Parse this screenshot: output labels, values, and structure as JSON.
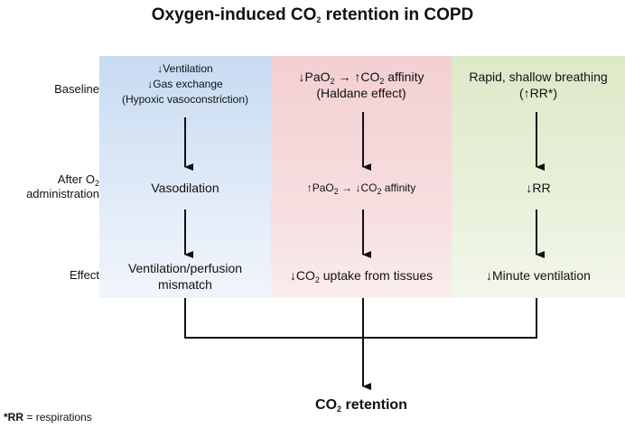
{
  "title": {
    "text": "Oxygen-induced CO",
    "sub": "2",
    "rest": " retention in COPD"
  },
  "row_labels": {
    "baseline": "Baseline",
    "after_line1": "After O",
    "after_sub": "2",
    "after_line2": "administration",
    "effect": "Effect"
  },
  "col1": {
    "baseline": {
      "l1": "Ventilation",
      "l2": "Gas exchange",
      "l3": "(Hypoxic vasoconstriction)"
    },
    "after": "Vasodilation",
    "effect": {
      "l1": "Ventilation/perfusion",
      "l2": "mismatch"
    }
  },
  "col2": {
    "baseline": {
      "a": "PaO",
      "a_sub": "2",
      "b": "CO",
      "b_sub": "2",
      "b_rest": " affinity",
      "l2": "(Haldane effect)"
    },
    "after": {
      "a": "PaO",
      "a_sub": "2",
      "b": "CO",
      "b_sub": "2",
      "b_rest": " affinity"
    },
    "effect": {
      "a": "CO",
      "a_sub": "2",
      "rest": "  uptake from tissues"
    }
  },
  "col3": {
    "baseline": {
      "l1": "Rapid, shallow breathing",
      "l2_pre": "(",
      "l2": "RR*)"
    },
    "after": "RR",
    "effect": "Minute ventilation"
  },
  "result": {
    "text": "CO",
    "sub": "2",
    "rest": " retention"
  },
  "footnote": {
    "bold": "*RR",
    "rest": " = respirations"
  }
}
